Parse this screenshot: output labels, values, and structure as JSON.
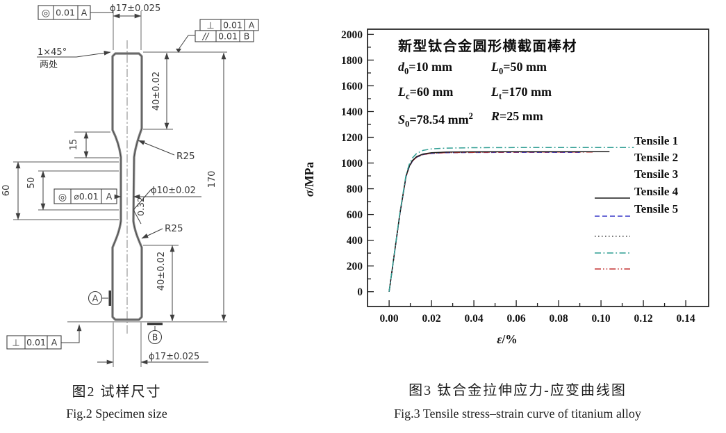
{
  "captions": {
    "left_zh": "图2  试样尺寸",
    "left_en": "Fig.2  Specimen size",
    "right_zh": "图3  钛合金拉伸应力-应变曲线图",
    "right_en": "Fig.3  Tensile stress–strain curve of titanium alloy"
  },
  "drawing": {
    "dim_phi17_top": "ϕ17±0.025",
    "dim_phi17_bottom": "ϕ17±0.025",
    "dim_phi10": "ϕ10±0.02",
    "dim_40_top": "40±0.02",
    "dim_40_bottom": "40±0.02",
    "dim_170": "170",
    "dim_60": "60",
    "dim_50": "50",
    "dim_15": "15",
    "chamfer": "1×45°",
    "chamfer_places": "两处",
    "r25_upper": "R25",
    "r25_lower": "R25",
    "roughness": "0.32",
    "datum_a": "A",
    "datum_b": "B",
    "fcf_concentric_top": {
      "sym": "◎",
      "tol": "0.01",
      "datum": "A"
    },
    "fcf_perpendicular_top": {
      "sym": "⊥",
      "tol": "0.01",
      "datum": "A"
    },
    "fcf_parallel_top": {
      "sym": "//",
      "tol": "0.01",
      "datum": "B"
    },
    "fcf_concentric_mid": {
      "sym": "◎",
      "tol": "⌀0.01",
      "datum": "A"
    },
    "fcf_perpendicular_bottom": {
      "sym": "⊥",
      "tol": "0.01",
      "datum": "A"
    }
  },
  "chart_data": {
    "type": "line",
    "title": "",
    "xlabel_var": "ε",
    "xlabel_rest": "/%",
    "ylabel_var": "σ",
    "ylabel_rest": "/MPa",
    "x_ticks": [
      "0.00",
      "0.02",
      "0.04",
      "0.06",
      "0.08",
      "0.10",
      "0.12",
      "0.14"
    ],
    "y_ticks": [
      "0",
      "200",
      "400",
      "600",
      "800",
      "1000",
      "1200",
      "1400",
      "1600",
      "1800",
      "2000"
    ],
    "x_major_step": 0.02,
    "y_major_step": 200,
    "xlim": [
      -0.0102,
      0.1508
    ],
    "ylim": [
      -115,
      2040
    ],
    "grid": false,
    "legend_position": "right-middle",
    "annotation": {
      "title": "新型钛合金圆形横截面棒材",
      "rows": [
        [
          [
            {
              "t": "d",
              "st": "i"
            },
            {
              "t": "0",
              "st": "sub"
            },
            {
              "t": "=10 mm"
            }
          ],
          [
            {
              "t": "L",
              "st": "i"
            },
            {
              "t": "0",
              "st": "sub"
            },
            {
              "t": "=50 mm"
            }
          ]
        ],
        [
          [
            {
              "t": "L",
              "st": "i"
            },
            {
              "t": "c",
              "st": "sub"
            },
            {
              "t": "=60 mm"
            }
          ],
          [
            {
              "t": "L",
              "st": "i"
            },
            {
              "t": "t",
              "st": "sub"
            },
            {
              "t": "=170 mm"
            }
          ]
        ],
        [
          [
            {
              "t": "S",
              "st": "i"
            },
            {
              "t": "0",
              "st": "sub"
            },
            {
              "t": "=78.54 mm"
            },
            {
              "t": "2",
              "st": "sup"
            }
          ],
          [
            {
              "t": "R",
              "st": "i"
            },
            {
              "t": "=25 mm"
            }
          ]
        ]
      ]
    },
    "series": [
      {
        "name": "Tensile 1",
        "color": "#1a1a1a",
        "dash": "",
        "points": [
          [
            0,
            0
          ],
          [
            0.005,
            600
          ],
          [
            0.008,
            900
          ],
          [
            0.0095,
            975
          ],
          [
            0.011,
            1020
          ],
          [
            0.013,
            1050
          ],
          [
            0.016,
            1070
          ],
          [
            0.02,
            1080
          ],
          [
            0.027,
            1085
          ],
          [
            0.04,
            1087
          ],
          [
            0.06,
            1088
          ],
          [
            0.08,
            1088
          ],
          [
            0.104,
            1088
          ]
        ]
      },
      {
        "name": "Tensile 2",
        "color": "#3a3ac8",
        "dash": "7 4",
        "points": [
          [
            0,
            0
          ],
          [
            0.005,
            595
          ],
          [
            0.008,
            895
          ],
          [
            0.0095,
            970
          ],
          [
            0.011,
            1015
          ],
          [
            0.013,
            1045
          ],
          [
            0.016,
            1065
          ],
          [
            0.02,
            1075
          ],
          [
            0.027,
            1080
          ],
          [
            0.04,
            1082
          ],
          [
            0.06,
            1083
          ],
          [
            0.09,
            1083
          ]
        ]
      },
      {
        "name": "Tensile 3",
        "color": "#4a4a4a",
        "dash": "1.6 3.4",
        "points": [
          [
            0,
            0
          ],
          [
            0.005,
            598
          ],
          [
            0.008,
            898
          ],
          [
            0.0095,
            972
          ],
          [
            0.011,
            1017
          ],
          [
            0.013,
            1047
          ],
          [
            0.016,
            1067
          ],
          [
            0.02,
            1077
          ],
          [
            0.027,
            1082
          ],
          [
            0.04,
            1084
          ],
          [
            0.06,
            1086
          ],
          [
            0.093,
            1086
          ]
        ]
      },
      {
        "name": "Tensile 4",
        "color": "#2f9e93",
        "dash": "9 3.5 1.8 3.5",
        "points": [
          [
            0,
            0
          ],
          [
            0.005,
            605
          ],
          [
            0.008,
            910
          ],
          [
            0.0095,
            990
          ],
          [
            0.011,
            1040
          ],
          [
            0.013,
            1075
          ],
          [
            0.016,
            1098
          ],
          [
            0.02,
            1110
          ],
          [
            0.027,
            1116
          ],
          [
            0.04,
            1119
          ],
          [
            0.06,
            1120
          ],
          [
            0.08,
            1121
          ],
          [
            0.1155,
            1121
          ]
        ]
      },
      {
        "name": "Tensile 5",
        "color": "#c43434",
        "dash": "9 3 1.6 3 1.6 3",
        "points": [
          [
            0,
            0
          ],
          [
            0.005,
            597
          ],
          [
            0.008,
            897
          ],
          [
            0.0095,
            971
          ],
          [
            0.011,
            1016
          ],
          [
            0.013,
            1046
          ],
          [
            0.016,
            1066
          ],
          [
            0.02,
            1076
          ],
          [
            0.027,
            1081
          ],
          [
            0.04,
            1083
          ],
          [
            0.06,
            1085
          ],
          [
            0.0962,
            1085
          ]
        ]
      }
    ],
    "draw_order": [
      1,
      2,
      4,
      0,
      3
    ]
  }
}
